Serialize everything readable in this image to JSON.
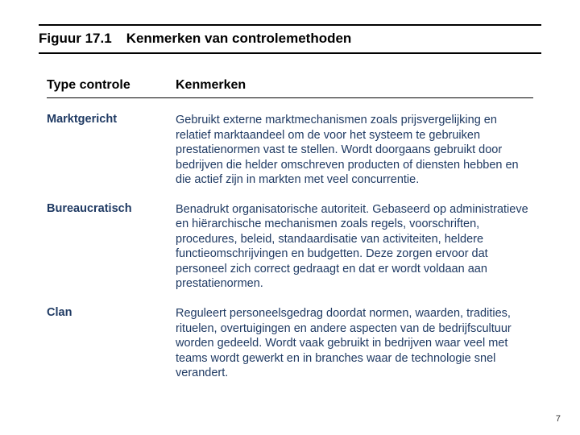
{
  "figure": {
    "number": "Figuur 17.1",
    "title": "Kenmerken van controlemethoden"
  },
  "columns": {
    "type": "Type controle",
    "features": "Kenmerken"
  },
  "rows": [
    {
      "label": "Marktgericht",
      "desc": "Gebruikt externe marktmechanismen zoals prijsvergelijking en relatief marktaandeel om de voor het systeem te gebruiken prestatienormen vast te stellen. Wordt doorgaans gebruikt door bedrijven die helder omschreven producten of diensten hebben en die actief zijn in markten met veel concurrentie."
    },
    {
      "label": "Bureaucratisch",
      "desc": "Benadrukt organisatorische autoriteit. Gebaseerd op administratieve en hiërarchische mechanismen zoals regels, voorschriften, procedures, beleid, standaardisatie van activiteiten, heldere functieomschrijvingen en budgetten. Deze zorgen ervoor dat personeel zich correct gedraagt en dat er wordt voldaan aan prestatienormen."
    },
    {
      "label": "Clan",
      "desc": "Reguleert personeelsgedrag doordat normen, waarden, tradities, rituelen, overtuigingen en andere aspecten van de bedrijfscultuur worden gedeeld. Wordt vaak gebruikt in bedrijven waar veel met teams wordt gewerkt en in branches waar de technologie snel verandert."
    }
  ],
  "pageNumber": "7",
  "colors": {
    "text_dark": "#000000",
    "text_blue": "#1f3a63",
    "background": "#ffffff"
  }
}
